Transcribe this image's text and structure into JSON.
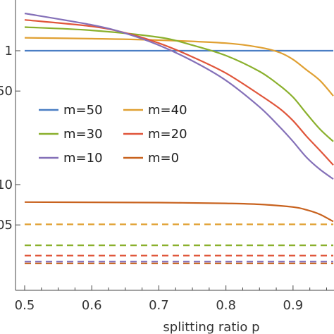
{
  "chart_data": {
    "type": "line",
    "xlabel": "splitting ratio p",
    "ylabel": "",
    "title": "",
    "xlim": [
      0.5,
      0.96
    ],
    "x_ticks": [
      "0.5",
      "0.6",
      "0.7",
      "0.8",
      "0.9"
    ],
    "x_tick_values": [
      0.5,
      0.6,
      0.7,
      0.8,
      0.9
    ],
    "y_ticks": [
      "1",
      "50",
      "10",
      "05"
    ],
    "y_tick_values": [
      1.0,
      0.5,
      0.1,
      0.05
    ],
    "ylim": [
      0.022,
      1.9
    ],
    "yscale": "log",
    "legend_position": "center-left",
    "series": [
      {
        "name": "m=50",
        "color": "#4a7ec4",
        "dashed": false,
        "x": [
          0.5,
          0.96
        ],
        "y": [
          1.0,
          1.0
        ]
      },
      {
        "name": "m=40",
        "color": "#e0a032",
        "dashed": false,
        "x": [
          0.5,
          0.6,
          0.7,
          0.8,
          0.85,
          0.88,
          0.9,
          0.92,
          0.94,
          0.96
        ],
        "y": [
          1.25,
          1.23,
          1.2,
          1.14,
          1.06,
          0.97,
          0.86,
          0.72,
          0.6,
          0.46
        ]
      },
      {
        "name": "m=30",
        "color": "#8ab02c",
        "dashed": false,
        "x": [
          0.5,
          0.6,
          0.7,
          0.75,
          0.8,
          0.85,
          0.88,
          0.9,
          0.92,
          0.94,
          0.96
        ],
        "y": [
          1.5,
          1.42,
          1.26,
          1.1,
          0.92,
          0.7,
          0.55,
          0.45,
          0.34,
          0.26,
          0.21
        ]
      },
      {
        "name": "m=20",
        "color": "#e0553a",
        "dashed": false,
        "x": [
          0.5,
          0.6,
          0.65,
          0.7,
          0.75,
          0.8,
          0.85,
          0.88,
          0.9,
          0.92,
          0.94,
          0.96
        ],
        "y": [
          1.7,
          1.52,
          1.36,
          1.14,
          0.9,
          0.68,
          0.47,
          0.37,
          0.3,
          0.23,
          0.18,
          0.14
        ]
      },
      {
        "name": "m=10",
        "color": "#8470b8",
        "dashed": false,
        "x": [
          0.5,
          0.6,
          0.65,
          0.7,
          0.75,
          0.8,
          0.85,
          0.88,
          0.9,
          0.92,
          0.94,
          0.96
        ],
        "y": [
          1.9,
          1.56,
          1.35,
          1.1,
          0.84,
          0.6,
          0.38,
          0.27,
          0.21,
          0.16,
          0.13,
          0.11
        ]
      },
      {
        "name": "m=0",
        "color": "#c8621e",
        "dashed": false,
        "x": [
          0.5,
          0.6,
          0.7,
          0.8,
          0.85,
          0.9,
          0.92,
          0.94,
          0.96
        ],
        "y": [
          0.074,
          0.0738,
          0.0734,
          0.0724,
          0.0712,
          0.068,
          0.0648,
          0.06,
          0.053
        ]
      },
      {
        "color": "#e0a032",
        "dashed": true,
        "x": [
          0.5,
          0.96
        ],
        "y": [
          0.0505,
          0.0505
        ]
      },
      {
        "color": "#8ab02c",
        "dashed": true,
        "x": [
          0.5,
          0.96
        ],
        "y": [
          0.0352,
          0.0352
        ]
      },
      {
        "color": "#e0553a",
        "dashed": true,
        "x": [
          0.5,
          0.96
        ],
        "y": [
          0.0295,
          0.0295
        ]
      },
      {
        "color": "#8470b8",
        "dashed": true,
        "x": [
          0.5,
          0.96
        ],
        "y": [
          0.0266,
          0.0266
        ]
      },
      {
        "color": "#c8621e",
        "dashed": true,
        "x": [
          0.5,
          0.96
        ],
        "y": [
          0.0258,
          0.0258
        ]
      }
    ]
  }
}
